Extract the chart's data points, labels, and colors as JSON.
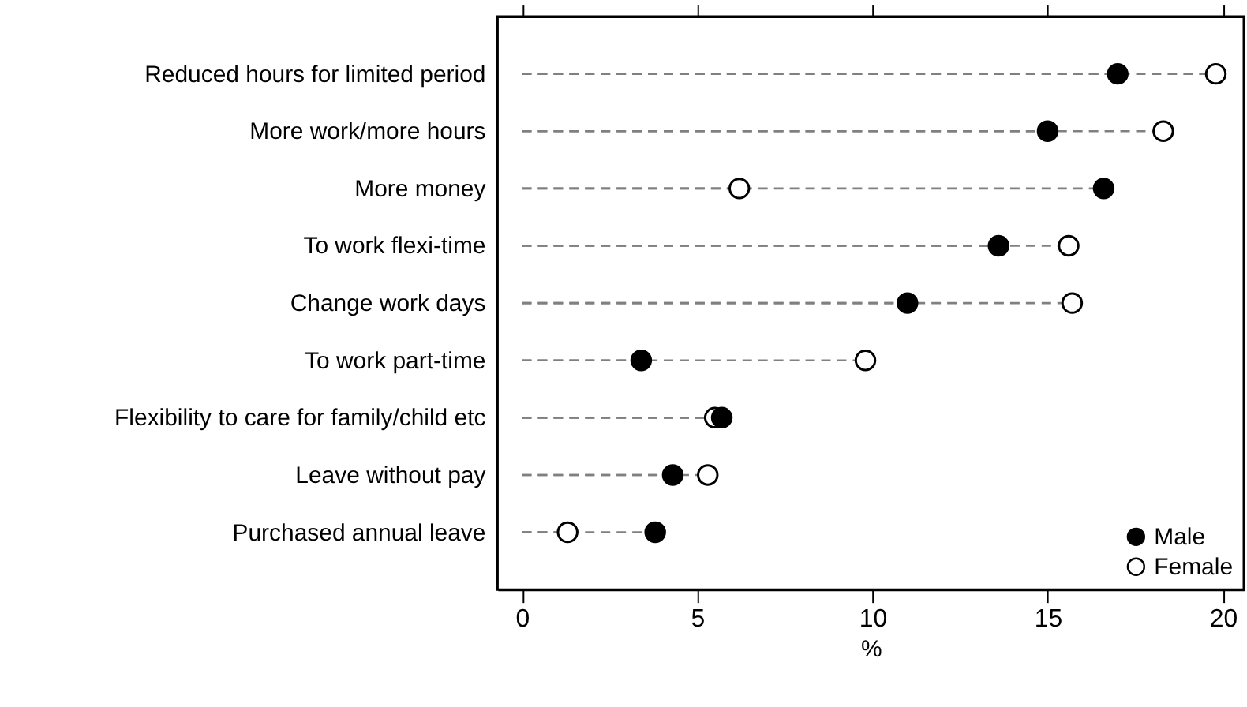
{
  "chart_data": {
    "type": "lollipop",
    "orientation": "horizontal",
    "xlabel": "%",
    "categories": [
      "Reduced hours for limited period",
      "More work/more hours",
      "More money",
      "To work flexi-time",
      "Change work days",
      "To work part-time",
      "Flexibility to care for family/child etc",
      "Leave without pay",
      "Purchased annual leave"
    ],
    "series": [
      {
        "name": "Male",
        "color": "#000000",
        "values": [
          17.0,
          15.0,
          16.6,
          13.6,
          11.0,
          3.4,
          5.7,
          4.3,
          3.8
        ]
      },
      {
        "name": "Female",
        "color": "#ffffff",
        "values": [
          19.8,
          18.3,
          6.2,
          15.6,
          15.7,
          9.8,
          5.5,
          5.3,
          1.3
        ]
      }
    ],
    "xlim": [
      -0.7,
      20.6
    ],
    "xticks": [
      0,
      5,
      10,
      15,
      20
    ],
    "grid": false,
    "legend": "bottom right",
    "marker": "circle",
    "line_style": "dashed"
  }
}
